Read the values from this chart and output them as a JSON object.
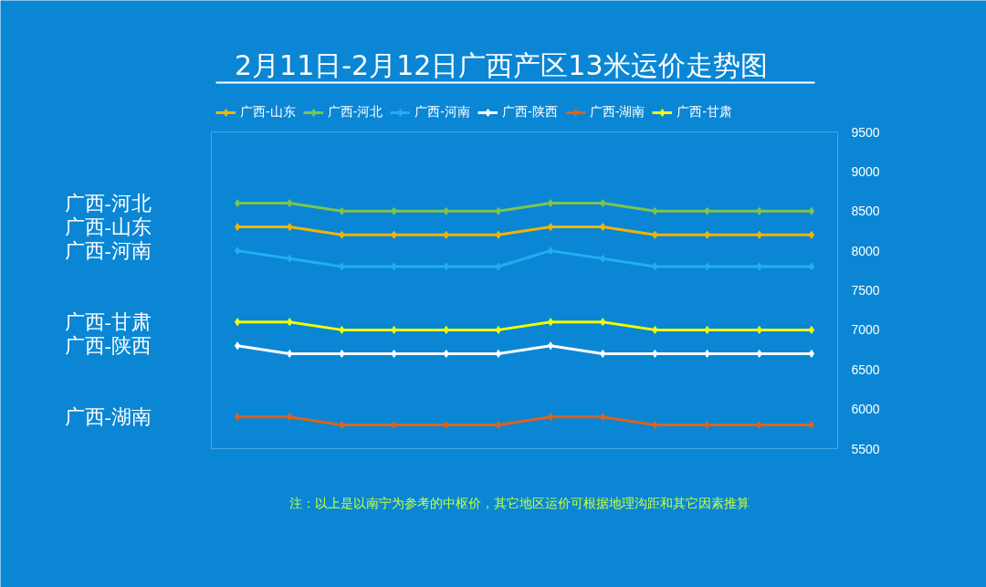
{
  "chart_data": {
    "type": "line",
    "title": "2月11日-2月12日广西产区13米运价走势图",
    "categories": [
      null,
      null,
      null,
      null,
      null,
      null,
      null,
      null,
      null,
      null,
      null,
      null
    ],
    "series": [
      {
        "name": "广西-山东",
        "color": "#f0b400",
        "values": [
          8300,
          8300,
          8200,
          8200,
          8200,
          8200,
          8300,
          8300,
          8200,
          8200,
          8200,
          8200
        ]
      },
      {
        "name": "广西-河北",
        "color": "#7cc450",
        "values": [
          8600,
          8600,
          8500,
          8500,
          8500,
          8500,
          8600,
          8600,
          8500,
          8500,
          8500,
          8500
        ]
      },
      {
        "name": "广西-河南",
        "color": "#22aef0",
        "values": [
          8000,
          7900,
          7800,
          7800,
          7800,
          7800,
          8000,
          7900,
          7800,
          7800,
          7800,
          7800
        ]
      },
      {
        "name": "广西-陕西",
        "color": "#ffffff",
        "values": [
          6800,
          6700,
          6700,
          6700,
          6700,
          6700,
          6800,
          6700,
          6700,
          6700,
          6700,
          6700
        ]
      },
      {
        "name": "广西-湖南",
        "color": "#d8641e",
        "values": [
          5900,
          5900,
          5800,
          5800,
          5800,
          5800,
          5900,
          5900,
          5800,
          5800,
          5800,
          5800
        ]
      },
      {
        "name": "广西-甘肃",
        "color": "#eeff00",
        "values": [
          7100,
          7100,
          7000,
          7000,
          7000,
          7000,
          7100,
          7100,
          7000,
          7000,
          7000,
          7000
        ]
      }
    ],
    "ylim": [
      5500,
      9500
    ],
    "yticks": [
      5500,
      6000,
      6500,
      7000,
      7500,
      8000,
      8500,
      9000,
      9500
    ],
    "grid": false,
    "legend": "top",
    "marker": "diamond",
    "line_style": "solid",
    "annotations": [
      "注：以上是以南宁为参考的中枢价，其它地区运价可根据地理沟距和其它因素推算"
    ]
  }
}
